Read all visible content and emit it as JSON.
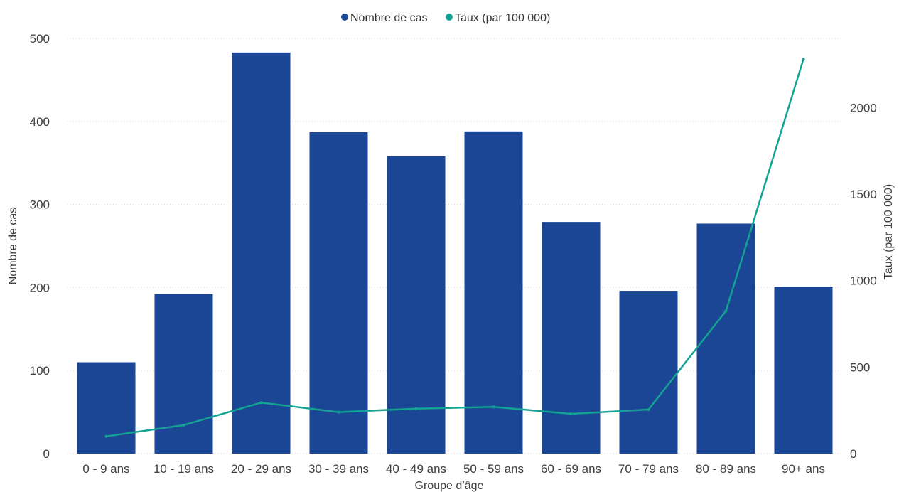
{
  "legend": {
    "items": [
      {
        "label": "Nombre de cas",
        "color": "#1b4595"
      },
      {
        "label": "Taux (par 100 000)",
        "color": "#14a392"
      }
    ]
  },
  "chart_data": {
    "type": "bar",
    "categories": [
      "0 - 9 ans",
      "10 - 19 ans",
      "20 - 29 ans",
      "30 - 39 ans",
      "40 - 49 ans",
      "50 - 59 ans",
      "60 - 69 ans",
      "70 - 79 ans",
      "80 - 89 ans",
      "90+ ans"
    ],
    "series": [
      {
        "name": "Nombre de cas",
        "type": "bar",
        "axis": "left",
        "color": "#1b4595",
        "values": [
          110,
          192,
          483,
          387,
          358,
          388,
          279,
          196,
          277,
          201
        ]
      },
      {
        "name": "Taux (par 100 000)",
        "type": "line",
        "axis": "right",
        "color": "#14a392",
        "values": [
          100,
          165,
          295,
          240,
          260,
          270,
          230,
          255,
          825,
          2280
        ]
      }
    ],
    "xlabel": "Groupe d’âge",
    "ylabel_left": "Nombre de cas",
    "ylabel_right": "Taux (par 100 000)",
    "ylim_left": [
      0,
      500
    ],
    "yticks_left": [
      "0",
      "100",
      "200",
      "300",
      "400",
      "500"
    ],
    "ylim_right": [
      0,
      2400
    ],
    "yticks_right": [
      "0",
      "500",
      "1000",
      "1500",
      "2000"
    ],
    "grid": true,
    "legend_position": "top-center"
  }
}
